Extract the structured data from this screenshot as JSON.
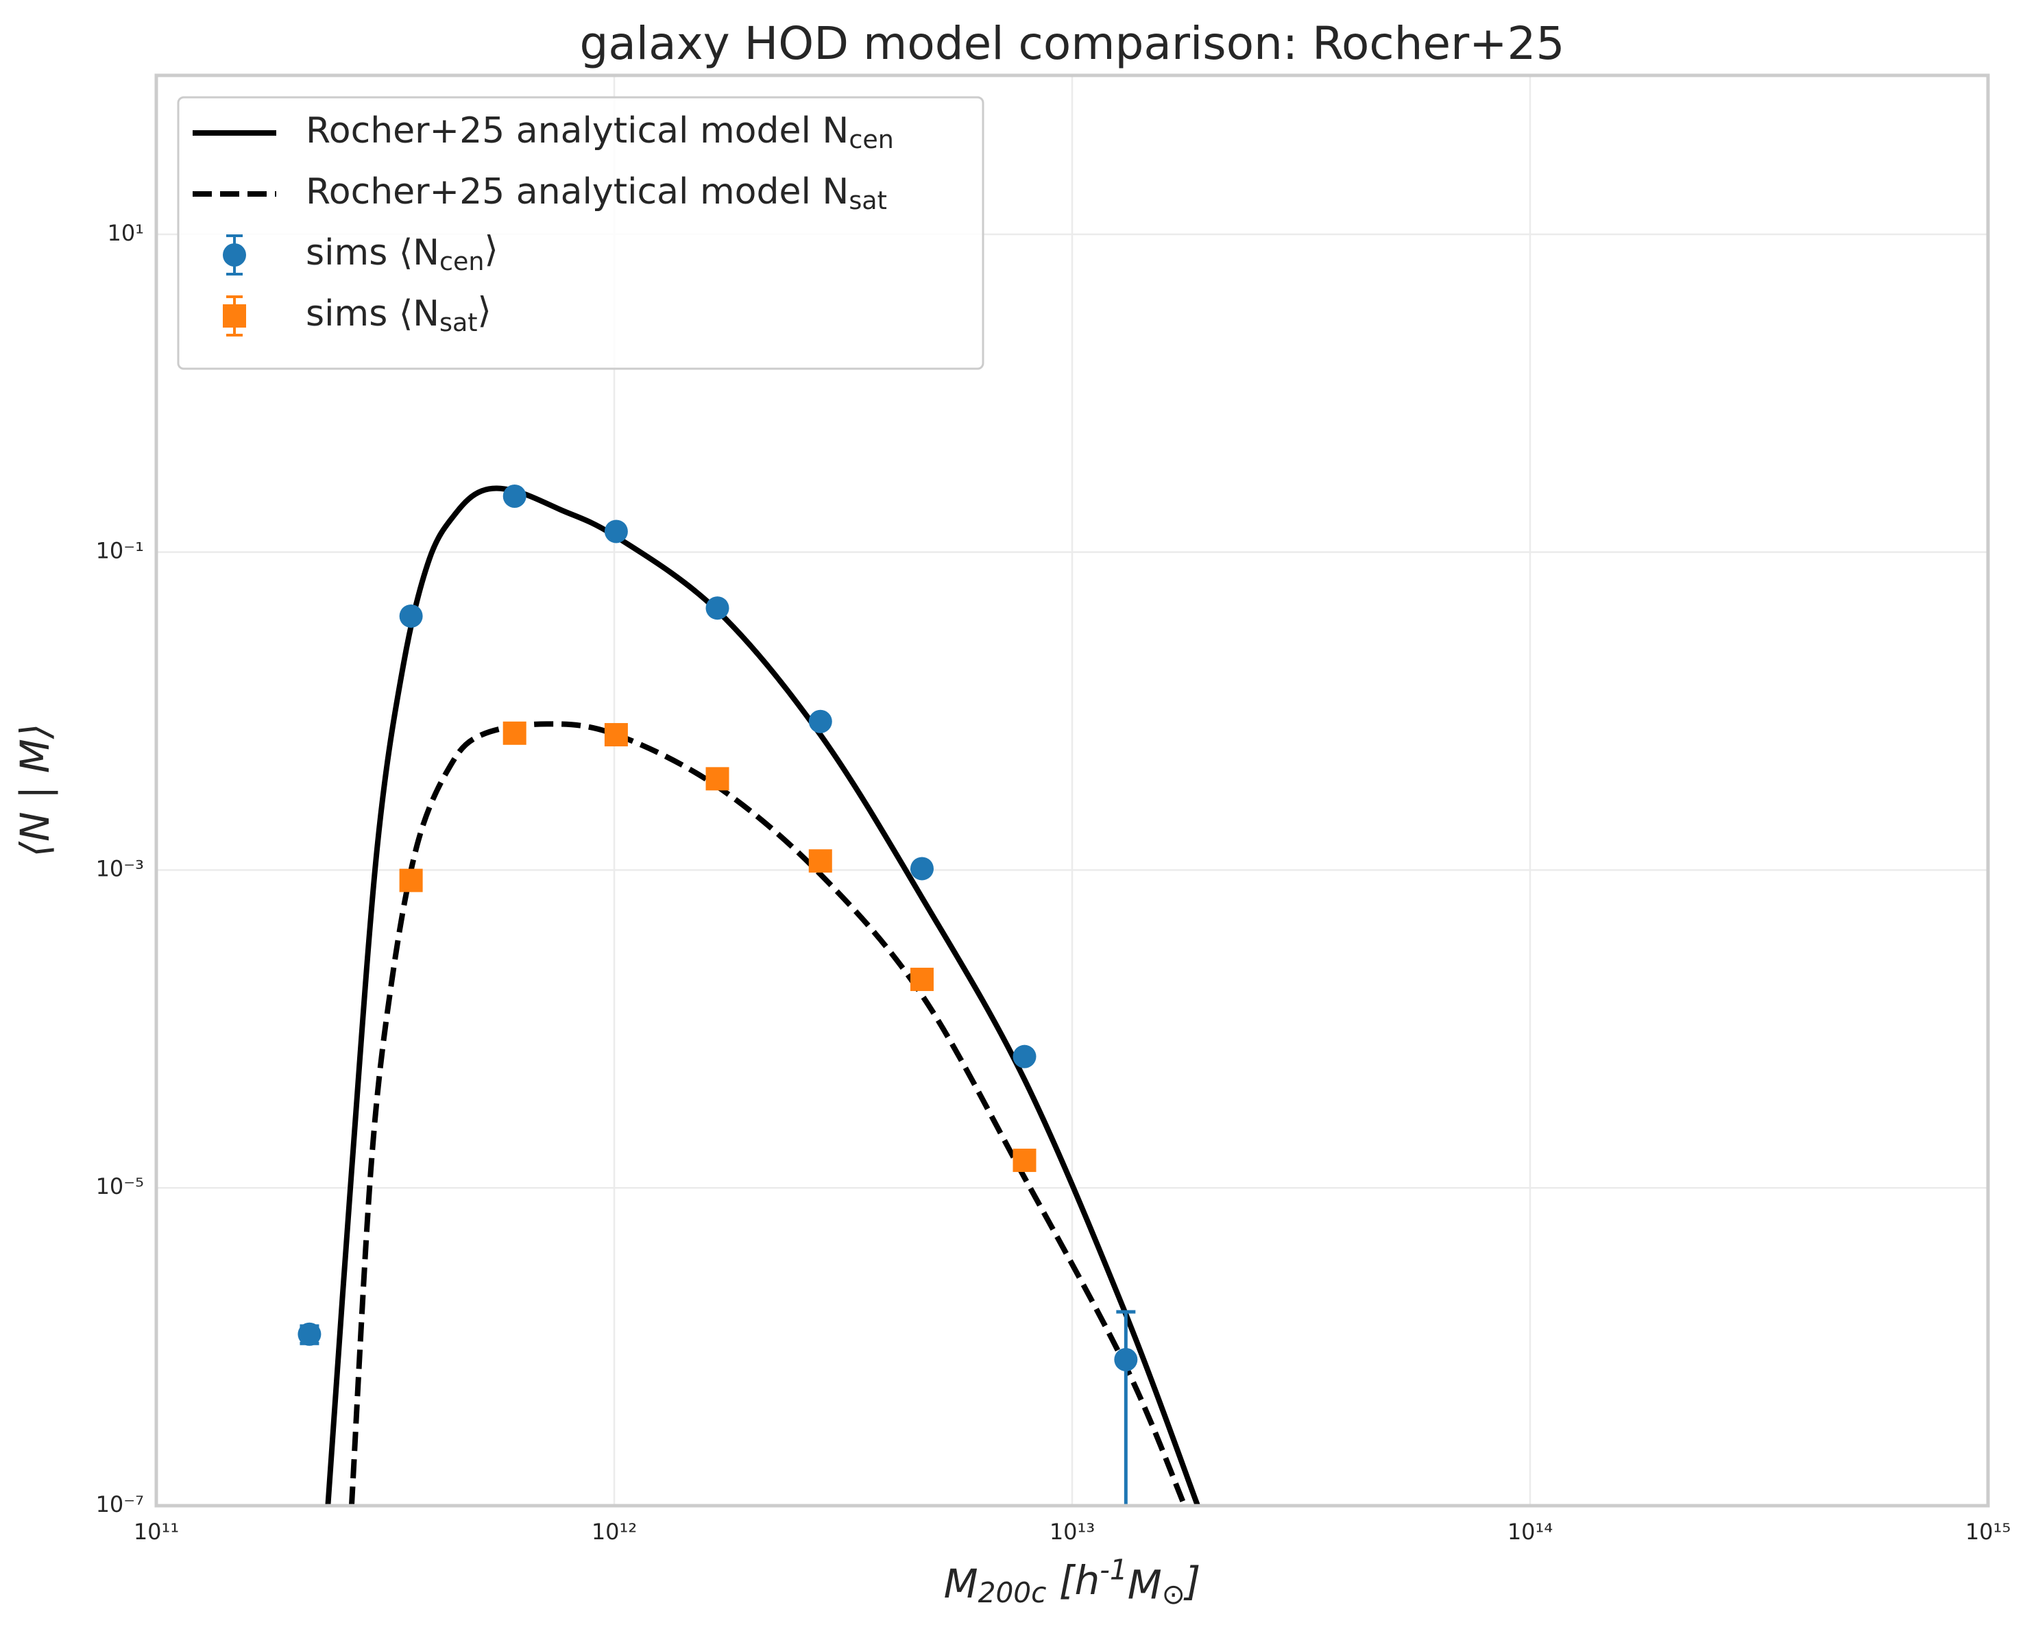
{
  "chart_data": {
    "type": "line",
    "title": "galaxy HOD model comparison: Rocher+25",
    "xlabel": "M_{200c} [h^{-1}M_{⊙}]",
    "ylabel": "⟨N | M⟩",
    "xscale": "log",
    "yscale": "log",
    "grid": true,
    "legend": "upper left",
    "xlim": [
      100000000000.0,
      1000000000000000.0
    ],
    "ylim": [
      1e-07,
      100.0
    ],
    "xticks": [
      {
        "value": 100000000000.0,
        "label": "10¹¹"
      },
      {
        "value": 1000000000000.0,
        "label": "10¹²"
      },
      {
        "value": 10000000000000.0,
        "label": "10¹³"
      },
      {
        "value": 100000000000000.0,
        "label": "10¹⁴"
      },
      {
        "value": 1000000000000000.0,
        "label": "10¹⁵"
      }
    ],
    "yticks": [
      {
        "value": 1e-07,
        "label": "10⁻⁷"
      },
      {
        "value": 1e-05,
        "label": "10⁻⁵"
      },
      {
        "value": 0.001,
        "label": "10⁻³"
      },
      {
        "value": 0.1,
        "label": "10⁻¹"
      },
      {
        "value": 10,
        "label": "10¹"
      }
    ],
    "series": [
      {
        "name": "Rocher+25 analytical model N_{cen}",
        "kind": "line",
        "color": "#000000",
        "dashed": false,
        "x": [
          237000000000.0,
          267000000000.0,
          304000000000.0,
          347000000000.0,
          395000000000.0,
          451000000000.0,
          514000000000.0,
          605000000000.0,
          760000000000.0,
          1010000000000.0,
          1680000000000.0,
          2820000000000.0,
          4700000000000.0,
          7870000000000.0,
          13100000000000.0,
          18800000000000.0
        ],
        "values": [
          1e-07,
          1.28e-05,
          0.00143,
          0.0201,
          0.091,
          0.176,
          0.243,
          0.243,
          0.186,
          0.125,
          0.0428,
          0.0071,
          0.00067,
          4.8e-05,
          1.6e-06,
          1e-07
        ]
      },
      {
        "name": "Rocher+25 analytical model N_{sat}",
        "kind": "line",
        "color": "#000000",
        "dashed": true,
        "x": [
          267000000000.0,
          294000000000.0,
          325000000000.0,
          371000000000.0,
          437000000000.0,
          514000000000.0,
          713000000000.0,
          1010000000000.0,
          1680000000000.0,
          2820000000000.0,
          4700000000000.0,
          7870000000000.0,
          13100000000000.0,
          17600000000000.0
        ],
        "values": [
          1e-07,
          1.28e-05,
          0.00018,
          0.00143,
          0.00445,
          0.0071,
          0.0083,
          0.0071,
          0.00335,
          0.00094,
          0.000163,
          1.16e-05,
          7.5e-07,
          1e-07
        ]
      },
      {
        "name": "sims ⟨N_{cen}⟩",
        "kind": "errorbar",
        "marker": "circle",
        "color": "#1f77b4",
        "x": [
          216000000000.0,
          360000000000.0,
          606000000000.0,
          1010000000000.0,
          1680000000000.0,
          2820000000000.0,
          4700000000000.0,
          7870000000000.0,
          13100000000000.0
        ],
        "values": [
          1.2e-06,
          0.0396,
          0.225,
          0.135,
          0.0445,
          0.0086,
          0.00102,
          6.7e-05,
          8.3e-07
        ],
        "errors": [
          1.5e-07,
          null,
          null,
          null,
          null,
          null,
          null,
          null,
          8.3e-07
        ]
      },
      {
        "name": "sims ⟨N_{sat}⟩",
        "kind": "errorbar",
        "marker": "square",
        "color": "#ff7f0e",
        "x": [
          216000000000.0,
          360000000000.0,
          606000000000.0,
          1010000000000.0,
          1680000000000.0,
          2820000000000.0,
          4700000000000.0,
          7870000000000.0,
          13100000000000.0
        ],
        "values": [
          null,
          0.00086,
          0.00726,
          0.0071,
          0.00375,
          0.00114,
          0.000205,
          1.49e-05,
          null
        ],
        "errors": [
          null,
          null,
          null,
          null,
          null,
          null,
          null,
          null,
          null
        ]
      }
    ]
  }
}
